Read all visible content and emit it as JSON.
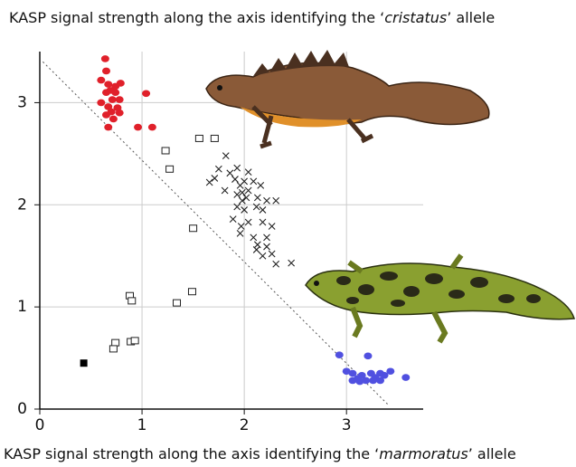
{
  "chart_data": {
    "type": "scatter",
    "title": [
      "KASP signal strength along the axis identifying the ‘",
      "cristatus",
      "’ allele"
    ],
    "x_label": [
      "KASP signal strength along the axis identifying the ‘",
      "marmoratus",
      "’ allele"
    ],
    "xlim": [
      0,
      3.75
    ],
    "ylim": [
      0,
      3.5
    ],
    "xticks": [
      0,
      1,
      2,
      3
    ],
    "yticks": [
      0,
      1,
      2,
      3
    ],
    "grid": true,
    "reference_line": {
      "x": [
        0.03,
        3.42
      ],
      "y": [
        3.4,
        0.03
      ],
      "color": "#555555"
    },
    "series": [
      {
        "marker": "circle",
        "color": "#e0202a",
        "x": [
          0.64,
          0.65,
          0.6,
          0.67,
          0.74,
          0.79,
          0.69,
          0.74,
          0.65,
          0.6,
          0.71,
          0.78,
          0.67,
          0.76,
          0.7,
          0.65,
          0.78,
          0.72,
          0.67,
          1.04,
          0.96,
          1.1
        ],
        "y": [
          3.43,
          3.31,
          3.22,
          3.18,
          3.16,
          3.19,
          3.12,
          3.1,
          3.1,
          3.0,
          3.03,
          3.03,
          2.96,
          2.95,
          2.91,
          2.88,
          2.9,
          2.84,
          2.76,
          3.09,
          2.76,
          2.76
        ]
      },
      {
        "marker": "circle",
        "color": "#5050e0",
        "x": [
          2.93,
          3.0,
          3.21,
          3.06,
          3.11,
          3.15,
          3.19,
          3.24,
          3.28,
          3.33,
          3.37,
          3.43,
          3.13,
          3.26,
          3.33,
          3.58,
          3.06
        ],
        "y": [
          0.53,
          0.37,
          0.52,
          0.35,
          0.3,
          0.33,
          0.28,
          0.35,
          0.31,
          0.35,
          0.33,
          0.37,
          0.27,
          0.28,
          0.28,
          0.31,
          0.28
        ]
      },
      {
        "marker": "cross",
        "color": "#222222",
        "x": [
          1.82,
          1.75,
          1.93,
          1.71,
          1.86,
          1.66,
          1.91,
          1.96,
          2.0,
          2.04,
          1.98,
          2.02,
          1.93,
          2.09,
          2.16,
          2.13,
          2.22,
          2.31,
          2.18,
          2.12,
          1.93,
          2.0,
          1.89,
          2.04,
          2.18,
          1.97,
          2.27,
          1.96,
          2.09,
          2.13,
          2.22,
          2.18,
          2.12,
          2.27,
          2.31,
          2.46,
          2.22,
          2.04,
          1.81,
          1.98
        ],
        "y": [
          2.48,
          2.35,
          2.36,
          2.26,
          2.31,
          2.22,
          2.25,
          2.19,
          2.23,
          2.14,
          2.12,
          2.07,
          2.1,
          2.23,
          2.19,
          2.07,
          2.04,
          2.04,
          1.95,
          1.98,
          1.98,
          1.95,
          1.86,
          1.83,
          1.83,
          1.79,
          1.79,
          1.72,
          1.68,
          1.61,
          1.59,
          1.5,
          1.56,
          1.52,
          1.42,
          1.43,
          1.68,
          2.32,
          2.14,
          2.04
        ]
      },
      {
        "marker": "open-square",
        "color": "#222222",
        "x": [
          1.56,
          1.71,
          1.23,
          1.27,
          1.5,
          1.49,
          1.34,
          0.88,
          0.9,
          0.74,
          0.72,
          0.89,
          0.93
        ],
        "y": [
          2.65,
          2.65,
          2.53,
          2.35,
          1.77,
          1.15,
          1.04,
          1.11,
          1.06,
          0.65,
          0.59,
          0.66,
          0.67
        ]
      },
      {
        "marker": "square",
        "color": "#000000",
        "x": [
          0.43
        ],
        "y": [
          0.45
        ]
      }
    ]
  }
}
